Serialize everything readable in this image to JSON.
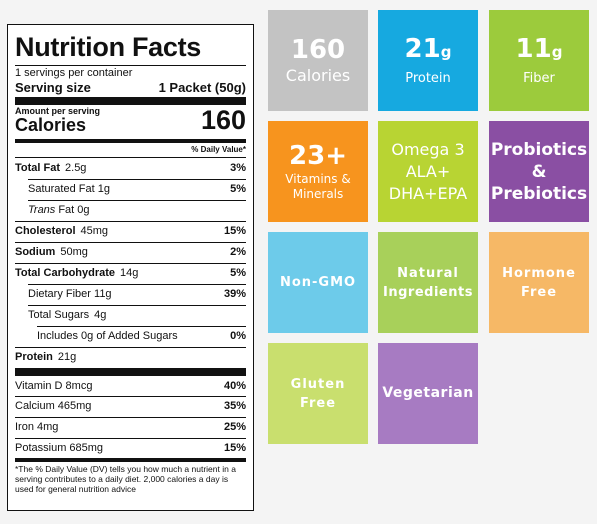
{
  "label": {
    "title": "Nutrition Facts",
    "servings": "1 servings per container",
    "serving_size_label": "Serving size",
    "serving_size_value": "1 Packet (50g)",
    "amount_per_serving": "Amount per serving",
    "calories_label": "Calories",
    "calories_value": "160",
    "dv_header": "% Daily Value*",
    "rows": [
      {
        "name": "Total Fat",
        "qty": "2.5g",
        "pct": "3%"
      },
      {
        "name": "Saturated Fat 1g",
        "qty": "",
        "pct": "5%"
      },
      {
        "name": "Trans",
        "qty": "Fat 0g",
        "pct": ""
      },
      {
        "name": "Cholesterol",
        "qty": "45mg",
        "pct": "15%"
      },
      {
        "name": "Sodium",
        "qty": "50mg",
        "pct": "2%"
      },
      {
        "name": "Total Carbohydrate",
        "qty": "14g",
        "pct": "5%"
      },
      {
        "name": "Dietary Fiber 11g",
        "qty": "",
        "pct": "39%"
      },
      {
        "name": "Total Sugars",
        "qty": "4g",
        "pct": ""
      },
      {
        "name": "Includes 0g of Added Sugars",
        "qty": "",
        "pct": "0%"
      },
      {
        "name": "Protein",
        "qty": "21g",
        "pct": ""
      }
    ],
    "vitamins": [
      {
        "name": "Vitamin D 8mcg",
        "pct": "40%"
      },
      {
        "name": "Calcium 465mg",
        "pct": "35%"
      },
      {
        "name": "Iron 4mg",
        "pct": "25%"
      },
      {
        "name": "Potassium 685mg",
        "pct": "15%"
      }
    ],
    "footnote": "*The % Daily Value (DV) tells you how much a nutrient in a serving contributes to a daily diet. 2,000 calories a day is used for general nutrition advice"
  },
  "tiles": [
    {
      "id": "calories",
      "big": "160",
      "sub": "Calories",
      "color": "#c3c3c3"
    },
    {
      "id": "protein",
      "big": "21",
      "unit": "g",
      "sub": "Protein",
      "color": "#16a9e0"
    },
    {
      "id": "fiber",
      "big": "11",
      "unit": "g",
      "sub": "Fiber",
      "color": "#9ccb3c"
    },
    {
      "id": "vitamins",
      "big": "23+",
      "sub": "Vitamins & Minerals",
      "color": "#f7941e"
    },
    {
      "id": "omega",
      "line1": "Omega 3",
      "line2": "ALA+",
      "line3": "DHA+EPA",
      "color": "#b8d433"
    },
    {
      "id": "probiotics",
      "line1": "Probiotics",
      "line2": "&",
      "line3": "Prebiotics",
      "color": "#8a4fa3"
    },
    {
      "id": "non-gmo",
      "text": "Non-GMO",
      "color": "#6dcbea"
    },
    {
      "id": "natural",
      "line1": "Natural",
      "line2": "Ingredients",
      "color": "#a8d05a"
    },
    {
      "id": "hormone",
      "line1": "Hormone",
      "line2": "Free",
      "color": "#f6b866"
    },
    {
      "id": "gluten",
      "line1": "Gluten",
      "line2": "Free",
      "color": "#c9df6e"
    },
    {
      "id": "vegetarian",
      "text": "Vegetarian",
      "color": "#a77bc2"
    }
  ]
}
